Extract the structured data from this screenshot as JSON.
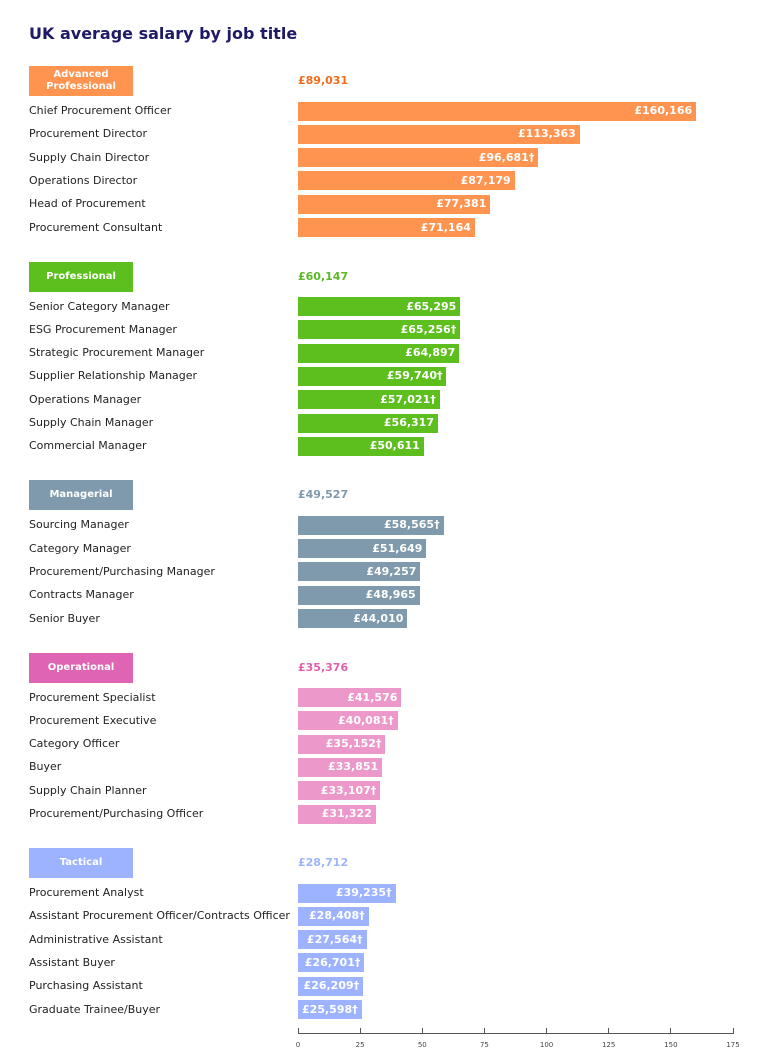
{
  "chart_data": {
    "type": "grouped-hbar",
    "title": "UK average salary by job title",
    "xlim": [
      0,
      175
    ],
    "xticks": [
      0,
      25,
      50,
      75,
      100,
      125,
      150,
      175
    ],
    "groups": [
      {
        "name": "Advanced Professional",
        "color": "#ff9350",
        "badge_color": "#ff9350",
        "average_color": "#f26c1a",
        "average": 89.031,
        "average_label": "£89,031",
        "categories": [
          "Chief Procurement Officer",
          "Procurement Director",
          "Supply Chain Director",
          "Operations Director",
          "Head of Procurement",
          "Procurement Consultant"
        ],
        "values": [
          160.166,
          113.363,
          96.681,
          87.179,
          77.381,
          71.164
        ],
        "value_labels": [
          "£160,166",
          "£113,363",
          "£96,681†",
          "£87,179",
          "£77,381",
          "£71,164"
        ]
      },
      {
        "name": "Professional",
        "color": "#5cbf1e",
        "badge_color": "#5cbf1e",
        "average_color": "#5cb825",
        "average": 60.147,
        "average_label": "£60,147",
        "categories": [
          "Senior Category Manager",
          "ESG Procurement Manager",
          "Strategic Procurement Manager",
          "Supplier Relationship Manager",
          "Operations Manager",
          "Supply Chain Manager",
          "Commercial Manager"
        ],
        "values": [
          65.295,
          65.256,
          64.897,
          59.74,
          57.021,
          56.317,
          50.611
        ],
        "value_labels": [
          "£65,295",
          "£65,256†",
          "£64,897",
          "£59,740†",
          "£57,021†",
          "£56,317",
          "£50,611"
        ]
      },
      {
        "name": "Managerial",
        "color": "#7f9aac",
        "badge_color": "#7f9aac",
        "average_color": "#7f9aac",
        "average": 49.527,
        "average_label": "£49,527",
        "categories": [
          "Sourcing Manager",
          "Category Manager",
          "Procurement/Purchasing Manager",
          "Contracts Manager",
          "Senior Buyer"
        ],
        "values": [
          58.565,
          51.649,
          49.257,
          48.965,
          44.01
        ],
        "value_labels": [
          "£58,565†",
          "£51,649",
          "£49,257",
          "£48,965",
          "£44,010"
        ]
      },
      {
        "name": "Operational",
        "color": "#ec98ca",
        "badge_color": "#e064b4",
        "average_color": "#e060b0",
        "average": 35.376,
        "average_label": "£35,376",
        "categories": [
          "Procurement Specialist",
          "Procurement Executive",
          "Category Officer",
          "Buyer",
          "Supply Chain Planner",
          "Procurement/Purchasing Officer"
        ],
        "values": [
          41.576,
          40.081,
          35.152,
          33.851,
          33.107,
          31.322
        ],
        "value_labels": [
          "£41,576",
          "£40,081†",
          "£35,152†",
          "£33,851",
          "£33,107†",
          "£31,322"
        ]
      },
      {
        "name": "Tactical",
        "color": "#9db3ff",
        "badge_color": "#9db3ff",
        "average_color": "#9db3ff",
        "average": 28.712,
        "average_label": "£28,712",
        "categories": [
          "Procurement Analyst",
          "Assistant Procurement Officer/Contracts Officer",
          "Administrative Assistant",
          "Assistant Buyer",
          "Purchasing Assistant",
          "Graduate Trainee/Buyer"
        ],
        "values": [
          39.235,
          28.408,
          27.564,
          26.701,
          26.209,
          25.598
        ],
        "value_labels": [
          "£39,235†",
          "£28,408†",
          "£27,564†",
          "£26,701†",
          "£26,209†",
          "£25,598†"
        ]
      }
    ]
  }
}
